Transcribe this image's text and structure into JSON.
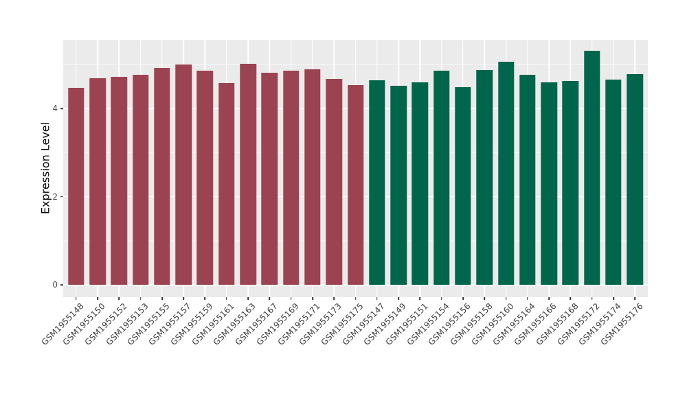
{
  "chart_data": {
    "type": "bar",
    "title": "",
    "xlabel": "",
    "ylabel": "Expression Level",
    "ylim": [
      0,
      5.56
    ],
    "yticks": [
      0,
      2,
      4
    ],
    "yticks_minor": [
      1,
      3,
      5
    ],
    "grid": true,
    "legend_position": "none",
    "panel_bg": "#EBEBEB",
    "grid_color": "#FFFFFF",
    "axis_text_color": "#4D4D4D",
    "axis_title_color": "#000000",
    "groups": [
      {
        "name": "group-1",
        "color": "#9C4351"
      },
      {
        "name": "group-2",
        "color": "#00664B"
      }
    ],
    "bars": [
      {
        "label": "GSM1955148",
        "value": 4.47,
        "group": 0
      },
      {
        "label": "GSM1955150",
        "value": 4.69,
        "group": 0
      },
      {
        "label": "GSM1955152",
        "value": 4.71,
        "group": 0
      },
      {
        "label": "GSM1955153",
        "value": 4.77,
        "group": 0
      },
      {
        "label": "GSM1955155",
        "value": 4.92,
        "group": 0
      },
      {
        "label": "GSM1955157",
        "value": 4.99,
        "group": 0
      },
      {
        "label": "GSM1955159",
        "value": 4.86,
        "group": 0
      },
      {
        "label": "GSM1955161",
        "value": 4.58,
        "group": 0
      },
      {
        "label": "GSM1955163",
        "value": 5.01,
        "group": 0
      },
      {
        "label": "GSM1955167",
        "value": 4.81,
        "group": 0
      },
      {
        "label": "GSM1955169",
        "value": 4.85,
        "group": 0
      },
      {
        "label": "GSM1955171",
        "value": 4.89,
        "group": 0
      },
      {
        "label": "GSM1955173",
        "value": 4.67,
        "group": 0
      },
      {
        "label": "GSM1955175",
        "value": 4.53,
        "group": 0
      },
      {
        "label": "GSM1955147",
        "value": 4.64,
        "group": 1
      },
      {
        "label": "GSM1955149",
        "value": 4.51,
        "group": 1
      },
      {
        "label": "GSM1955151",
        "value": 4.59,
        "group": 1
      },
      {
        "label": "GSM1955154",
        "value": 4.85,
        "group": 1
      },
      {
        "label": "GSM1955156",
        "value": 4.48,
        "group": 1
      },
      {
        "label": "GSM1955158",
        "value": 4.87,
        "group": 1
      },
      {
        "label": "GSM1955160",
        "value": 5.06,
        "group": 1
      },
      {
        "label": "GSM1955164",
        "value": 4.76,
        "group": 1
      },
      {
        "label": "GSM1955166",
        "value": 4.59,
        "group": 1
      },
      {
        "label": "GSM1955168",
        "value": 4.63,
        "group": 1
      },
      {
        "label": "GSM1955172",
        "value": 5.31,
        "group": 1
      },
      {
        "label": "GSM1955174",
        "value": 4.65,
        "group": 1
      },
      {
        "label": "GSM1955176",
        "value": 4.78,
        "group": 1
      }
    ]
  }
}
